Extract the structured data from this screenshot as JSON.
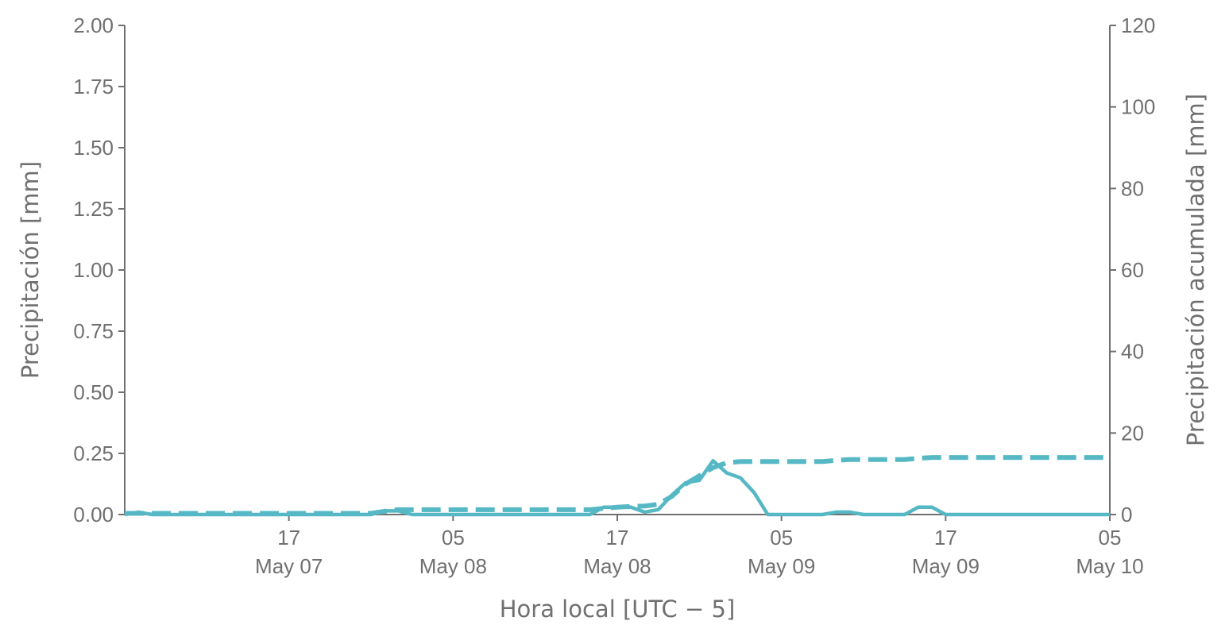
{
  "chart_data": {
    "type": "line",
    "x_label": "Hora local [UTC − 5]",
    "y_label": "Precipitación [mm]",
    "y2_label": "Precipitación acumulada [mm]",
    "x": [
      "May 07 05:00",
      "May 07 06:00",
      "May 07 07:00",
      "May 07 08:00",
      "May 07 09:00",
      "May 07 10:00",
      "May 07 11:00",
      "May 07 12:00",
      "May 07 13:00",
      "May 07 14:00",
      "May 07 15:00",
      "May 07 16:00",
      "May 07 17:00",
      "May 07 18:00",
      "May 07 19:00",
      "May 07 20:00",
      "May 07 21:00",
      "May 07 22:00",
      "May 07 23:00",
      "May 08 00:00",
      "May 08 01:00",
      "May 08 02:00",
      "May 08 03:00",
      "May 08 04:00",
      "May 08 05:00",
      "May 08 06:00",
      "May 08 07:00",
      "May 08 08:00",
      "May 08 09:00",
      "May 08 10:00",
      "May 08 11:00",
      "May 08 12:00",
      "May 08 13:00",
      "May 08 14:00",
      "May 08 15:00",
      "May 08 16:00",
      "May 08 17:00",
      "May 08 18:00",
      "May 08 19:00",
      "May 08 20:00",
      "May 08 21:00",
      "May 08 22:00",
      "May 08 23:00",
      "May 09 00:00",
      "May 09 01:00",
      "May 09 02:00",
      "May 09 03:00",
      "May 09 04:00",
      "May 09 05:00",
      "May 09 06:00",
      "May 09 07:00",
      "May 09 08:00",
      "May 09 09:00",
      "May 09 10:00",
      "May 09 11:00",
      "May 09 12:00",
      "May 09 13:00",
      "May 09 14:00",
      "May 09 15:00",
      "May 09 16:00",
      "May 09 17:00",
      "May 09 18:00",
      "May 09 19:00",
      "May 09 20:00",
      "May 09 21:00",
      "May 09 22:00",
      "May 09 23:00",
      "May 10 00:00",
      "May 10 01:00",
      "May 10 02:00",
      "May 10 03:00",
      "May 10 04:00",
      "May 10 05:00"
    ],
    "xlim": [
      "May 07 05:00",
      "May 10 05:00"
    ],
    "xticks": [
      {
        "value": "May 07 17:00",
        "label": "17\nMay 07"
      },
      {
        "value": "May 08 05:00",
        "label": "05\nMay 08"
      },
      {
        "value": "May 08 17:00",
        "label": "17\nMay 08"
      },
      {
        "value": "May 09 05:00",
        "label": "05\nMay 09"
      },
      {
        "value": "May 09 17:00",
        "label": "17\nMay 09"
      },
      {
        "value": "May 10 05:00",
        "label": "05\nMay 10"
      }
    ],
    "ylim": [
      0,
      2
    ],
    "yticks": [
      {
        "value": 0,
        "label": "0.00"
      },
      {
        "value": 0.25,
        "label": "0.25"
      },
      {
        "value": 0.5,
        "label": "0.50"
      },
      {
        "value": 0.75,
        "label": "0.75"
      },
      {
        "value": 1,
        "label": "1.00"
      },
      {
        "value": 1.25,
        "label": "1.25"
      },
      {
        "value": 1.5,
        "label": "1.50"
      },
      {
        "value": 1.75,
        "label": "1.75"
      },
      {
        "value": 2,
        "label": "2.00"
      }
    ],
    "y2lim": [
      0,
      120
    ],
    "y2ticks": [
      0,
      20,
      40,
      60,
      80,
      100,
      120
    ],
    "series": [
      {
        "color": "#56b8c4",
        "style": "solid",
        "values": [
          0,
          0.01,
          0,
          0,
          0,
          0,
          0,
          0,
          0,
          0,
          0,
          0,
          0,
          0,
          0,
          0,
          0,
          0,
          0,
          0.015,
          0.015,
          0,
          0,
          0,
          0,
          0,
          0,
          0,
          0,
          0,
          0,
          0,
          0,
          0,
          0,
          0.03,
          0.03,
          0.03,
          0.01,
          0.02,
          0.08,
          0.13,
          0.14,
          0.22,
          0.17,
          0.15,
          0.09,
          0,
          0,
          0,
          0,
          0,
          0.01,
          0.01,
          0,
          0,
          0,
          0,
          0.03,
          0.03,
          0,
          0,
          0,
          0,
          0,
          0,
          0,
          0,
          0,
          0,
          0,
          0,
          0
        ]
      },
      {
        "color": "#56b8c4",
        "style": "dashed",
        "axis": "y2",
        "values": [
          0.3,
          0.3,
          0.3,
          0.3,
          0.3,
          0.3,
          0.3,
          0.3,
          0.3,
          0.3,
          0.3,
          0.3,
          0.3,
          0.3,
          0.3,
          0.3,
          0.3,
          0.3,
          0.3,
          0.8,
          1.2,
          1.2,
          1.2,
          1.2,
          1.2,
          1.2,
          1.2,
          1.2,
          1.2,
          1.2,
          1.2,
          1.2,
          1.2,
          1.2,
          1.2,
          1.5,
          1.8,
          2.0,
          2.1,
          2.5,
          4.5,
          7.5,
          9.5,
          11.5,
          12.7,
          13,
          13,
          13,
          13,
          13,
          13,
          13,
          13.3,
          13.5,
          13.5,
          13.5,
          13.5,
          13.5,
          13.8,
          14,
          14,
          14,
          14,
          14,
          14,
          14,
          14,
          14,
          14,
          14,
          14,
          14,
          14
        ]
      }
    ]
  }
}
